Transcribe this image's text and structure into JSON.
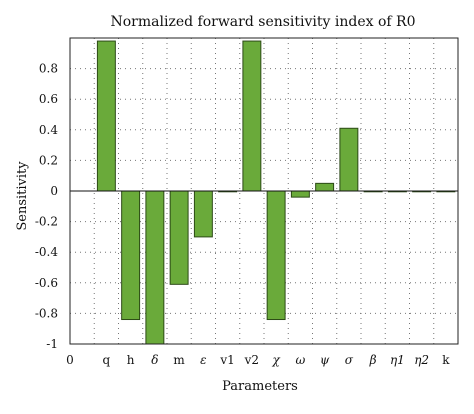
{
  "chart_data": {
    "type": "bar",
    "title": "Normalized forward sensitivity index of R0",
    "xlabel": "Parameters",
    "ylabel": "Sensitivity",
    "x_tick_labels": [
      "0",
      "q",
      "h",
      "δ",
      "m",
      "ε",
      "v1",
      "v2",
      "χ",
      "ω",
      "ψ",
      "σ",
      "β",
      "η1",
      "η2",
      "k"
    ],
    "categories": [
      "q",
      "h",
      "δ",
      "m",
      "ε",
      "v1",
      "v2",
      "χ",
      "ω",
      "ψ",
      "σ",
      "β",
      "η1",
      "η2",
      "k"
    ],
    "values": [
      0.98,
      -0.84,
      -1.0,
      -0.61,
      -0.3,
      0.0,
      0.98,
      -0.84,
      -0.04,
      0.05,
      0.41,
      0.0,
      0.0,
      0.0,
      0.0
    ],
    "ylim": [
      -1.0,
      1.0
    ],
    "yticks": [
      {
        "value": 0.8,
        "label": "0.8"
      },
      {
        "value": 0.6,
        "label": "0.6"
      },
      {
        "value": 0.4,
        "label": "0.4"
      },
      {
        "value": 0.2,
        "label": "0.2"
      },
      {
        "value": 0.0,
        "label": "0"
      },
      {
        "value": -0.2,
        "label": "-0.2"
      },
      {
        "value": -0.4,
        "label": "-0.4"
      },
      {
        "value": -0.6,
        "label": "-0.6"
      },
      {
        "value": -0.8,
        "label": "-0.8"
      },
      {
        "value": -1.0,
        "label": "-1"
      }
    ],
    "grid": true,
    "legend": "none",
    "bar_color": "#6aaa3a"
  }
}
